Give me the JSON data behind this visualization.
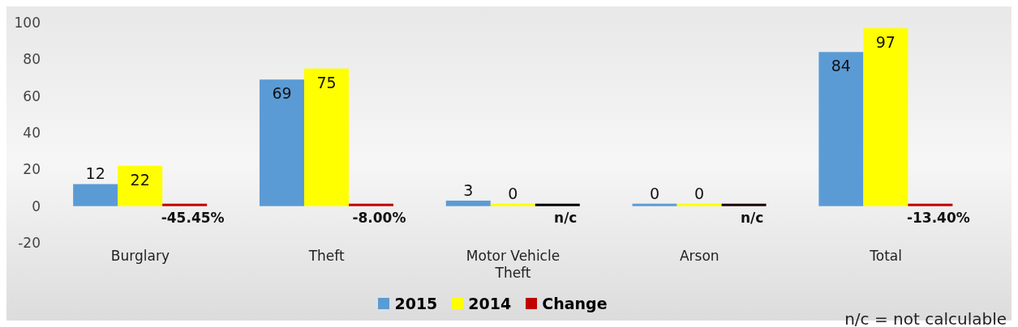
{
  "chart_data": {
    "type": "bar",
    "categories": [
      "Burglary",
      "Theft",
      "Motor Vehicle Theft",
      "Arson",
      "Total"
    ],
    "series": [
      {
        "name": "2015",
        "color": "#5b9bd5",
        "values": [
          12,
          69,
          3,
          0,
          84
        ],
        "value_labels": [
          "12",
          "69",
          "3",
          "0",
          "84"
        ]
      },
      {
        "name": "2014",
        "color": "#ffff00",
        "values": [
          22,
          75,
          0,
          0,
          97
        ],
        "value_labels": [
          "22",
          "75",
          "0",
          "0",
          "97"
        ]
      },
      {
        "name": "Change",
        "color": "#c00000",
        "colors": [
          "#c00000",
          "#c00000",
          "#000000",
          "#1a0000",
          "#c00000"
        ],
        "values": [
          -0.4545,
          -0.08,
          0,
          0,
          -0.134
        ],
        "value_labels": [
          "-45.45%",
          "-8.00%",
          "n/c",
          "n/c",
          "-13.40%"
        ]
      }
    ],
    "ylim": [
      -20,
      100
    ],
    "yticks": [
      -20,
      0,
      20,
      40,
      60,
      80,
      100
    ],
    "grid": false,
    "legend": "bottom",
    "annotations": [
      "n/c = not calculable"
    ]
  }
}
